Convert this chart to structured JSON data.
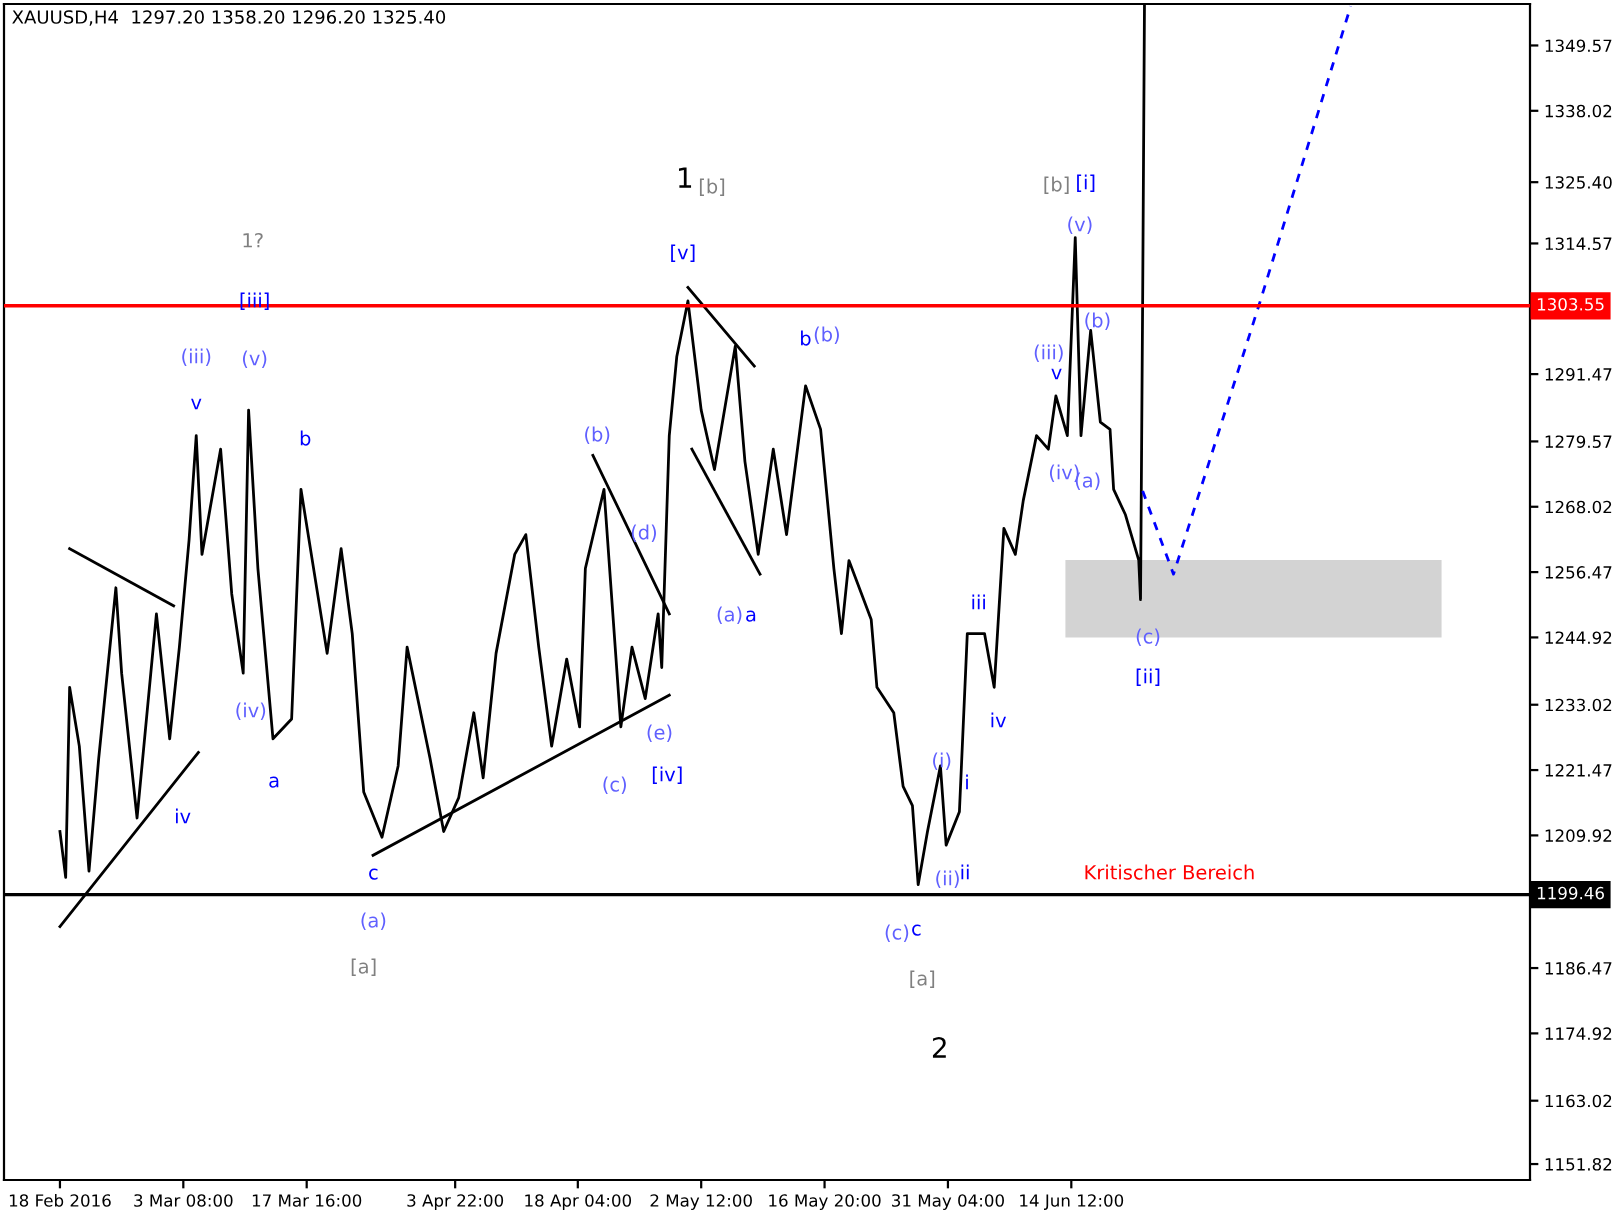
{
  "chart_data": {
    "type": "line",
    "title": "XAUUSD,H4  1297.20 1358.20 1296.20 1325.40",
    "xlim": [
      "2016-02-11T12:00",
      "2016-08-06T19:00"
    ],
    "ylim": [
      1149.0,
      1356.9
    ],
    "xticks": [
      {
        "value": "2016-02-18T00:00",
        "label": "18 Feb 2016"
      },
      {
        "value": "2016-03-03T08:00",
        "label": "3 Mar 08:00"
      },
      {
        "value": "2016-03-17T16:00",
        "label": "17 Mar 16:00"
      },
      {
        "value": "2016-04-03T22:00",
        "label": "3 Apr 22:00"
      },
      {
        "value": "2016-04-18T04:00",
        "label": "18 Apr 04:00"
      },
      {
        "value": "2016-05-02T12:00",
        "label": "2 May 12:00"
      },
      {
        "value": "2016-05-16T20:00",
        "label": "16 May 20:00"
      },
      {
        "value": "2016-05-31T04:00",
        "label": "31 May 04:00"
      },
      {
        "value": "2016-06-14T12:00",
        "label": "14 Jun 12:00"
      }
    ],
    "yticks": [
      1151.82,
      1163.02,
      1174.92,
      1186.47,
      1209.92,
      1221.47,
      1233.02,
      1244.92,
      1256.47,
      1268.02,
      1279.57,
      1291.47,
      1314.57,
      {
        "value": 1325.4,
        "label": "1325.40"
      },
      1338.02,
      1349.57
    ],
    "grid": false,
    "legend": false,
    "series": [
      {
        "color": "#000000",
        "x": [
          "2016-02-18T00:00",
          "2016-02-18T16:00",
          "2016-02-19T03:00",
          "2016-02-20T06:00",
          "2016-02-21T09:00",
          "2016-02-22T12:00",
          "2016-02-24T12:00",
          "2016-02-25T04:00",
          "2016-02-26T23:00",
          "2016-02-29T05:00",
          "2016-03-01T18:00",
          "2016-03-02T21:00",
          "2016-03-04T00:00",
          "2016-03-04T20:00",
          "2016-03-05T12:00",
          "2016-03-07T16:00",
          "2016-03-08T23:00",
          "2016-03-10T07:00",
          "2016-03-10T22:00",
          "2016-03-12T00:00",
          "2016-03-13T18:00",
          "2016-03-15T22:00",
          "2016-03-17T00:00",
          "2016-03-20T01:00",
          "2016-03-21T16:00",
          "2016-03-22T23:00",
          "2016-03-24T07:00",
          "2016-03-26T10:00",
          "2016-03-28T07:00",
          "2016-03-29T08:00",
          "2016-04-01T00:00",
          "2016-04-02T14:00",
          "2016-04-04T08:00",
          "2016-04-06T02:00",
          "2016-04-07T04:00",
          "2016-04-08T16:00",
          "2016-04-10T20:00",
          "2016-04-12T03:00",
          "2016-04-13T15:00",
          "2016-04-15T03:00",
          "2016-04-16T21:00",
          "2016-04-18T09:00",
          "2016-04-19T01:00",
          "2016-04-21T05:00",
          "2016-04-23T04:00",
          "2016-04-24T11:00",
          "2016-04-26T00:00",
          "2016-04-27T12:00",
          "2016-04-27T22:00",
          "2016-04-28T19:00",
          "2016-04-29T16:00",
          "2016-04-30T23:00",
          "2016-05-02T12:00",
          "2016-05-04T01:00",
          "2016-05-06T11:00",
          "2016-05-07T14:00",
          "2016-05-09T03:00",
          "2016-05-10T21:00",
          "2016-05-12T10:00",
          "2016-05-14T15:00",
          "2016-05-16T09:00",
          "2016-05-17T22:00",
          "2016-05-18T19:00",
          "2016-05-19T16:00",
          "2016-05-22T06:00",
          "2016-05-22T22:00",
          "2016-05-24T21:00",
          "2016-05-25T23:00",
          "2016-05-27T01:00",
          "2016-05-27T17:00",
          "2016-05-28T19:00",
          "2016-05-30T07:00",
          "2016-05-30T23:00",
          "2016-06-01T12:00",
          "2016-06-02T10:00",
          "2016-06-04T10:00",
          "2016-06-05T13:00",
          "2016-06-06T16:00",
          "2016-06-08T00:00",
          "2016-06-08T22:00",
          "2016-06-10T11:00",
          "2016-06-11T20:00",
          "2016-06-12T17:00",
          "2016-06-14T01:00",
          "2016-06-14T23:00",
          "2016-06-15T15:00",
          "2016-06-16T18:00",
          "2016-06-17T21:00",
          "2016-06-19T00:00",
          "2016-06-19T10:00",
          "2016-06-20T19:00",
          "2016-06-22T08:00",
          "2016-06-22T13:00",
          "2016-06-22T19:00",
          "2016-06-23T00:00"
        ],
        "values": [
          1210.6,
          1202.5,
          1236.1,
          1225.7,
          1203.6,
          1223.5,
          1253.7,
          1238.6,
          1213.0,
          1249.1,
          1227.0,
          1243.2,
          1262.1,
          1280.6,
          1259.6,
          1278.2,
          1252.6,
          1238.6,
          1285.1,
          1257.1,
          1227.0,
          1230.5,
          1271.1,
          1242.1,
          1260.6,
          1245.6,
          1217.6,
          1209.6,
          1222.2,
          1243.2,
          1223.5,
          1210.6,
          1216.6,
          1231.6,
          1220.1,
          1242.1,
          1259.6,
          1263.1,
          1243.2,
          1225.7,
          1241.1,
          1229.1,
          1257.1,
          1271.1,
          1229.1,
          1243.2,
          1234.1,
          1249.1,
          1239.6,
          1280.6,
          1294.6,
          1304.4,
          1285.1,
          1274.6,
          1296.4,
          1276.0,
          1259.6,
          1278.2,
          1263.1,
          1289.4,
          1281.7,
          1257.1,
          1245.6,
          1258.5,
          1248.1,
          1236.1,
          1231.6,
          1218.6,
          1215.2,
          1201.2,
          1210.6,
          1222.2,
          1208.2,
          1214.1,
          1245.6,
          1245.6,
          1236.1,
          1264.2,
          1259.6,
          1269.1,
          1280.6,
          1278.2,
          1287.6,
          1280.6,
          1315.6,
          1280.6,
          1299.2,
          1283.0,
          1281.7,
          1271.1,
          1266.6,
          1258.6,
          1251.6,
          1305.1,
          1356.5
        ]
      },
      {
        "type": "line",
        "color": "#0000ff",
        "line_style": "dashed",
        "x": [
          "2016-06-22T19:00",
          "2016-06-26T09:00",
          "2016-07-06T11:00",
          "2016-07-16T23:00"
        ],
        "values": [
          1270.8,
          1256.1,
          1304.4,
          1356.5
        ]
      },
      {
        "type": "bar",
        "color": "#d3d3d3",
        "x": [
          "2016-07-05T16:00"
        ],
        "values": [
          13.7
        ],
        "base": [
          1244.9
        ]
      },
      {
        "type": "line",
        "color": "#000000",
        "x": [
          "2016-02-19T03:00",
          "2016-03-02T05:00"
        ],
        "values": [
          1260.6,
          1250.5
        ]
      },
      {
        "type": "line",
        "color": "#000000",
        "x": [
          "2016-02-18T00:00",
          "2016-03-05T02:00"
        ],
        "values": [
          1193.8,
          1224.6
        ]
      },
      {
        "type": "line",
        "color": "#000000",
        "x": [
          "2016-03-25T09:00",
          "2016-04-28T19:00"
        ],
        "values": [
          1206.4,
          1234.7
        ]
      },
      {
        "type": "line",
        "color": "#000000",
        "x": [
          "2016-04-19T22:00",
          "2016-04-28T19:00"
        ],
        "values": [
          1277.1,
          1249.1
        ]
      },
      {
        "type": "line",
        "color": "#000000",
        "x": [
          "2016-04-30T23:00",
          "2016-05-08T16:00"
        ],
        "values": [
          1306.8,
          1292.9
        ]
      },
      {
        "type": "line",
        "color": "#000000",
        "x": [
          "2016-05-01T10:00",
          "2016-05-09T08:00"
        ],
        "values": [
          1278.2,
          1256.1
        ]
      }
    ],
    "ref_lines": [
      {
        "axis": "y",
        "value": 1303.55,
        "label": "1303.55",
        "color": "#ff0000"
      },
      {
        "axis": "y",
        "value": 1199.46,
        "label": "1199.46",
        "color": "#000000"
      }
    ],
    "annotations": [
      "1?",
      "[iii]",
      "(iii)",
      "(v)",
      "v",
      "b",
      "(iv)",
      "a",
      "iv",
      "c",
      "(a)",
      "[a]",
      "1",
      "[b]",
      "[v]",
      "(b)",
      "(d)",
      "(a)",
      "a",
      "(e)",
      "(c)",
      "[iv]",
      "b",
      "(b)",
      "(i)",
      "i",
      "(ii)",
      "ii",
      "(c)",
      "c",
      "[a]",
      "2",
      "iii",
      "iv",
      "(iii)",
      "v",
      "(iv)",
      "(a)",
      "[b]",
      "[i]",
      "(v)",
      "(b)",
      "(c)",
      "[ii]",
      "Kritischer Bereich"
    ]
  }
}
